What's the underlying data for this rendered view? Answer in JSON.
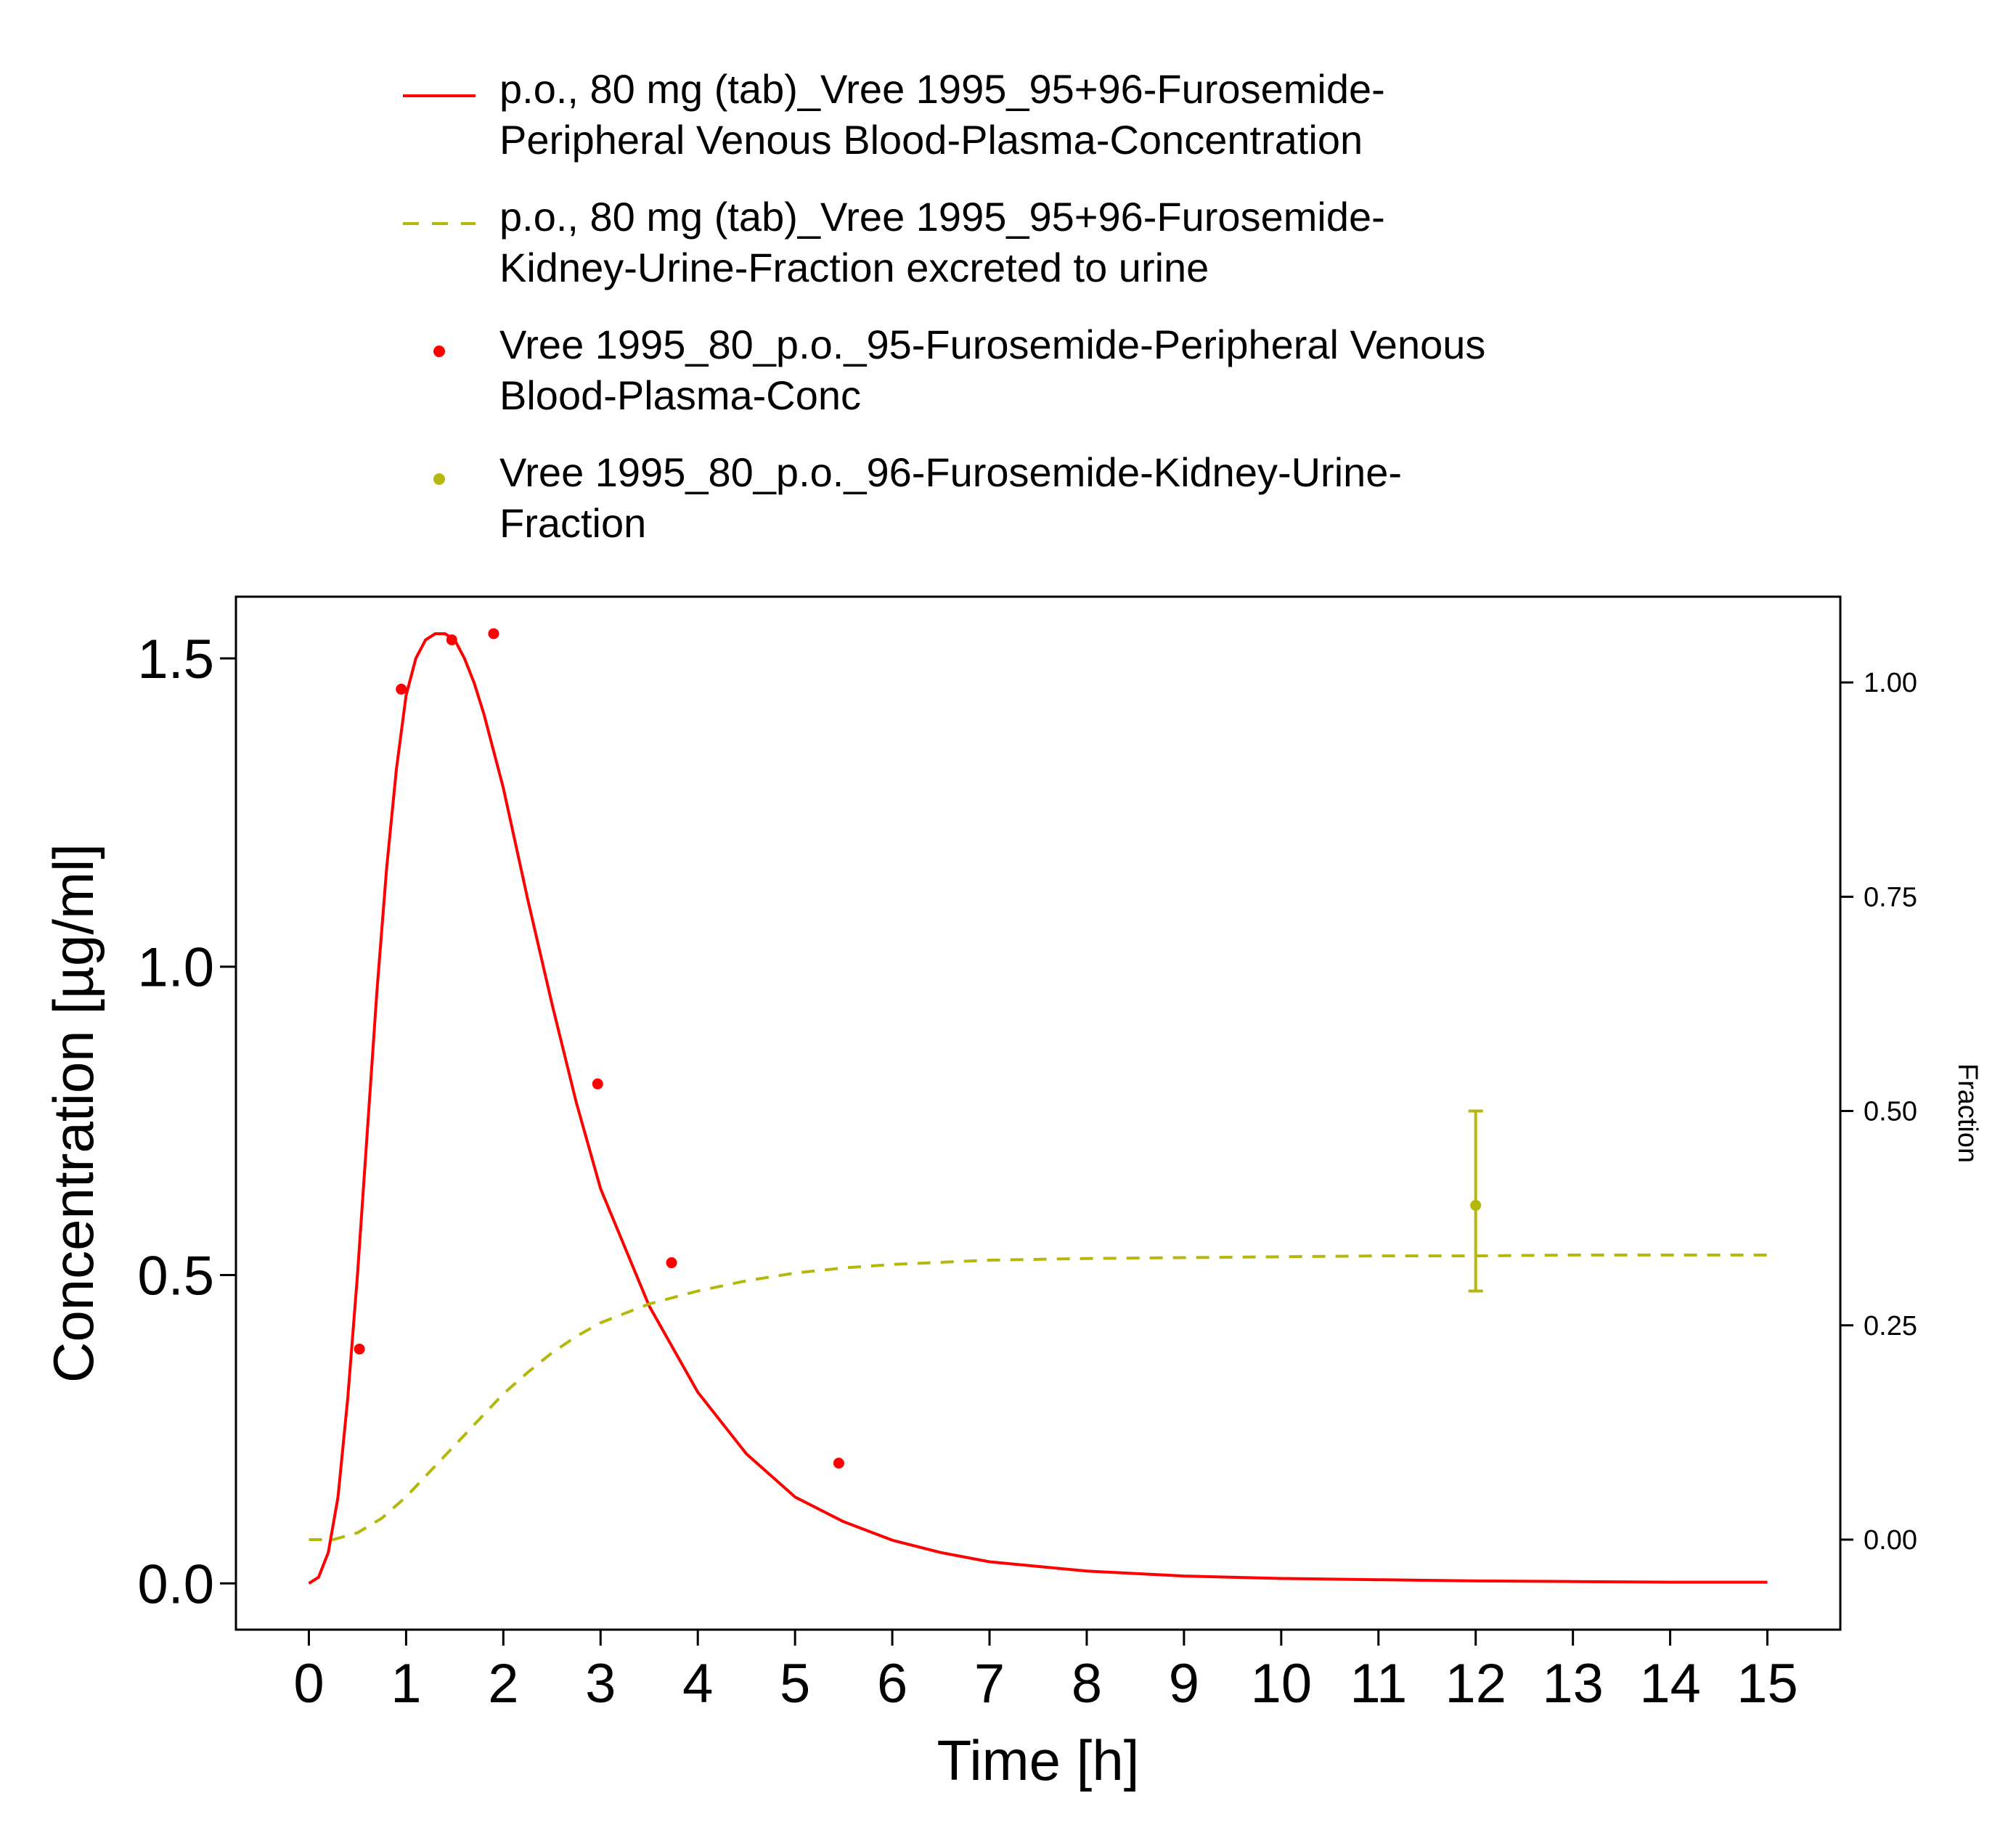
{
  "chart_data": {
    "type": "line",
    "title": "",
    "xlabel": "Time [h]",
    "ylabel": "Concentration [µg/ml]",
    "y2label": "Fraction",
    "xlim": [
      -0.75,
      15.75
    ],
    "ylim": [
      -0.075,
      1.6
    ],
    "y2lim": [
      -0.105,
      1.1
    ],
    "x_ticks": [
      0,
      1,
      2,
      3,
      4,
      5,
      6,
      7,
      8,
      9,
      10,
      11,
      12,
      13,
      14,
      15
    ],
    "y_ticks": [
      "0.0",
      "0.5",
      "1.0",
      "1.5"
    ],
    "y2_ticks": [
      "0.00",
      "0.25",
      "0.50",
      "0.75",
      "1.00"
    ],
    "legend_position": "top",
    "series": [
      {
        "name": "p.o., 80 mg (tab)_Vree 1995_95+96-Furosemide-Peripheral Venous Blood-Plasma-Concentration",
        "kind": "line",
        "axis": "left",
        "color": "#ff0000",
        "dash": "solid",
        "x": [
          0,
          0.1,
          0.2,
          0.3,
          0.4,
          0.5,
          0.6,
          0.7,
          0.8,
          0.9,
          1.0,
          1.1,
          1.2,
          1.3,
          1.4,
          1.5,
          1.6,
          1.7,
          1.8,
          1.9,
          2.0,
          2.25,
          2.5,
          2.75,
          3.0,
          3.5,
          4.0,
          4.5,
          5.0,
          5.5,
          6.0,
          6.5,
          7.0,
          8.0,
          9.0,
          10.0,
          11.0,
          12.0,
          13.0,
          14.0,
          15.0
        ],
        "y": [
          0.0,
          0.01,
          0.05,
          0.14,
          0.3,
          0.5,
          0.73,
          0.96,
          1.16,
          1.32,
          1.44,
          1.5,
          1.53,
          1.54,
          1.54,
          1.53,
          1.5,
          1.46,
          1.41,
          1.35,
          1.29,
          1.11,
          0.94,
          0.78,
          0.64,
          0.45,
          0.31,
          0.21,
          0.14,
          0.1,
          0.07,
          0.05,
          0.035,
          0.02,
          0.012,
          0.008,
          0.006,
          0.004,
          0.003,
          0.002,
          0.002
        ]
      },
      {
        "name": "p.o., 80 mg (tab)_Vree 1995_95+96-Furosemide-Kidney-Urine-Fraction excreted to urine",
        "kind": "line",
        "axis": "right",
        "color": "#b5b80c",
        "dash": "dashed",
        "x": [
          0,
          0.25,
          0.5,
          0.75,
          1.0,
          1.25,
          1.5,
          1.75,
          2.0,
          2.25,
          2.5,
          2.75,
          3.0,
          3.5,
          4.0,
          4.5,
          5.0,
          5.5,
          6.0,
          7.0,
          8.0,
          9.0,
          10.0,
          11.0,
          12.0,
          13.0,
          14.0,
          15.0
        ],
        "y": [
          0.0,
          0.0,
          0.008,
          0.025,
          0.05,
          0.08,
          0.11,
          0.14,
          0.17,
          0.195,
          0.218,
          0.237,
          0.253,
          0.275,
          0.29,
          0.302,
          0.311,
          0.317,
          0.321,
          0.326,
          0.328,
          0.329,
          0.33,
          0.331,
          0.331,
          0.332,
          0.332,
          0.332
        ]
      },
      {
        "name": "Vree 1995_80_p.o._95-Furosemide-Peripheral Venous Blood-Plasma-Conc",
        "kind": "points",
        "axis": "left",
        "color": "#ff0000",
        "x": [
          0.52,
          0.95,
          1.47,
          1.9,
          2.97,
          3.73,
          5.45
        ],
        "y": [
          0.38,
          1.45,
          1.53,
          1.54,
          0.81,
          0.52,
          0.195
        ]
      },
      {
        "name": "Vree 1995_80_p.o._96-Furosemide-Kidney-Urine-Fraction",
        "kind": "points",
        "axis": "right",
        "color": "#b5b80c",
        "x": [
          12
        ],
        "y": [
          0.39
        ],
        "error_low": [
          0.29
        ],
        "error_high": [
          0.5
        ]
      }
    ]
  },
  "legend": {
    "items": [
      {
        "lines": [
          "p.o., 80 mg (tab)_Vree 1995_95+96-Furosemide-",
          "Peripheral Venous Blood-Plasma-Concentration"
        ],
        "symbol": "line",
        "color": "#ff0000"
      },
      {
        "lines": [
          "p.o., 80 mg (tab)_Vree 1995_95+96-Furosemide-",
          "Kidney-Urine-Fraction excreted to urine"
        ],
        "symbol": "dashed",
        "color": "#b5b80c"
      },
      {
        "lines": [
          "Vree 1995_80_p.o._95-Furosemide-Peripheral Venous",
          "Blood-Plasma-Conc"
        ],
        "symbol": "point",
        "color": "#ff0000"
      },
      {
        "lines": [
          "Vree 1995_80_p.o._96-Furosemide-Kidney-Urine-",
          "Fraction"
        ],
        "symbol": "point",
        "color": "#b5b80c"
      }
    ]
  }
}
